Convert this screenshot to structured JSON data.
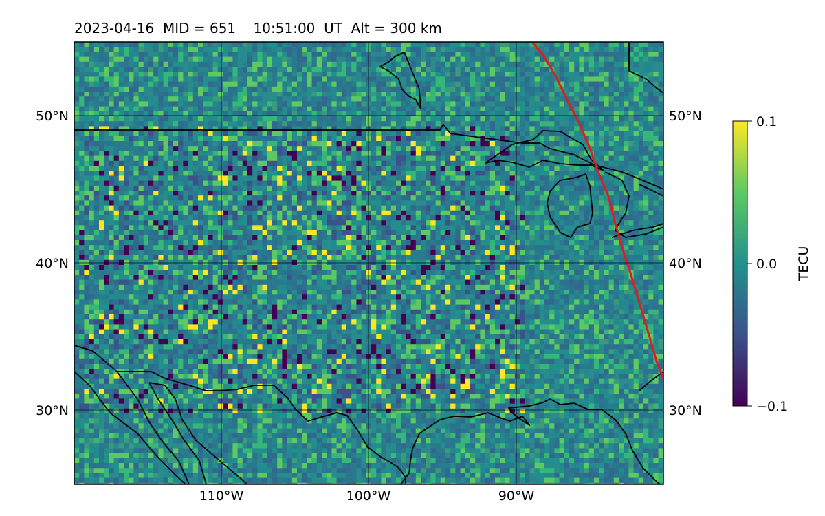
{
  "title": "2023-04-16  MID = 651    10:51:00  UT  Alt = 300 km",
  "map": {
    "lon_range": [
      -120,
      -80
    ],
    "lat_range": [
      25,
      55
    ],
    "lon_ticks": [
      "110°W",
      "100°W",
      "90°W"
    ],
    "lat_ticks": [
      "50°N",
      "40°N",
      "30°N"
    ],
    "gridlines": true,
    "coastlines": true,
    "borders": true,
    "overlay_line_color": "#e41a1c",
    "colormap": "viridis"
  },
  "colorbar": {
    "label": "TECU",
    "ticks": [
      "0.1",
      "0.0",
      "−0.1"
    ],
    "range": [
      -0.1,
      0.1
    ],
    "colors": [
      "#440154",
      "#3b528b",
      "#21918c",
      "#5ec962",
      "#fde725"
    ]
  }
}
